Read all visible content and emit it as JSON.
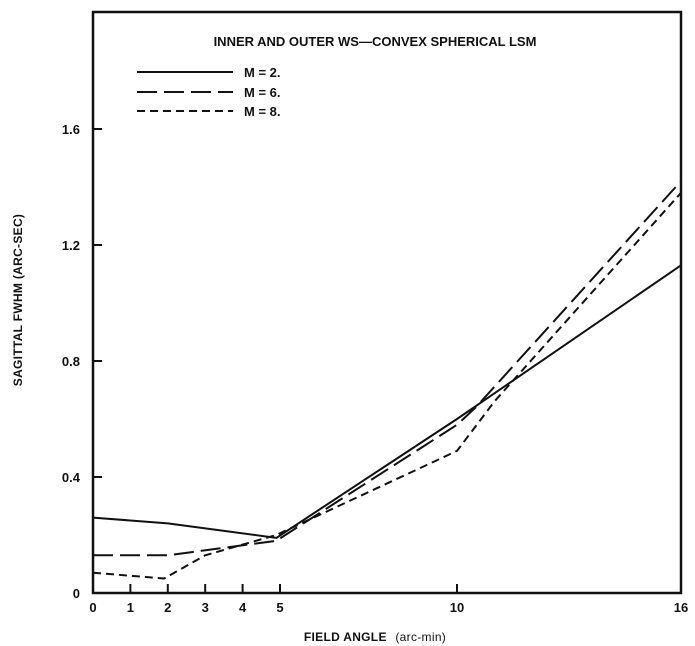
{
  "chart_data": {
    "type": "line",
    "title": "INNER AND OUTER WS—CONVEX SPHERICAL LSM",
    "xlabel": "FIELD ANGLE",
    "xlabel_unit": "(arc-min)",
    "ylabel": "SAGITTAL FWHM (ARC-SEC)",
    "xlim": [
      0,
      16
    ],
    "ylim": [
      0,
      2.0
    ],
    "xticks": [
      0,
      1,
      2,
      3,
      4,
      5,
      10,
      16
    ],
    "xtick_labels": [
      "0",
      "1",
      "2",
      "3",
      "4",
      "5",
      "10",
      "16"
    ],
    "yticks": [
      0,
      0.4,
      0.8,
      1.2,
      1.6
    ],
    "ytick_labels": [
      "0",
      "0.4",
      "0.8",
      "1.2",
      "1.6"
    ],
    "grid": false,
    "legend_position": "top-left",
    "series": [
      {
        "name": "M = 2.",
        "style": "solid",
        "x": [
          0,
          2,
          4.9,
          10,
          16
        ],
        "y": [
          0.26,
          0.24,
          0.19,
          0.6,
          1.13
        ]
      },
      {
        "name": "M = 6.",
        "style": "long-dash",
        "x": [
          0,
          2,
          4.9,
          10,
          10.5,
          16
        ],
        "y": [
          0.13,
          0.13,
          0.18,
          0.58,
          0.64,
          1.42
        ]
      },
      {
        "name": "M = 8.",
        "style": "short-dash",
        "x": [
          0,
          1.9,
          3,
          4.9,
          10,
          11,
          16
        ],
        "y": [
          0.07,
          0.05,
          0.13,
          0.2,
          0.49,
          0.66,
          1.38
        ]
      }
    ]
  }
}
